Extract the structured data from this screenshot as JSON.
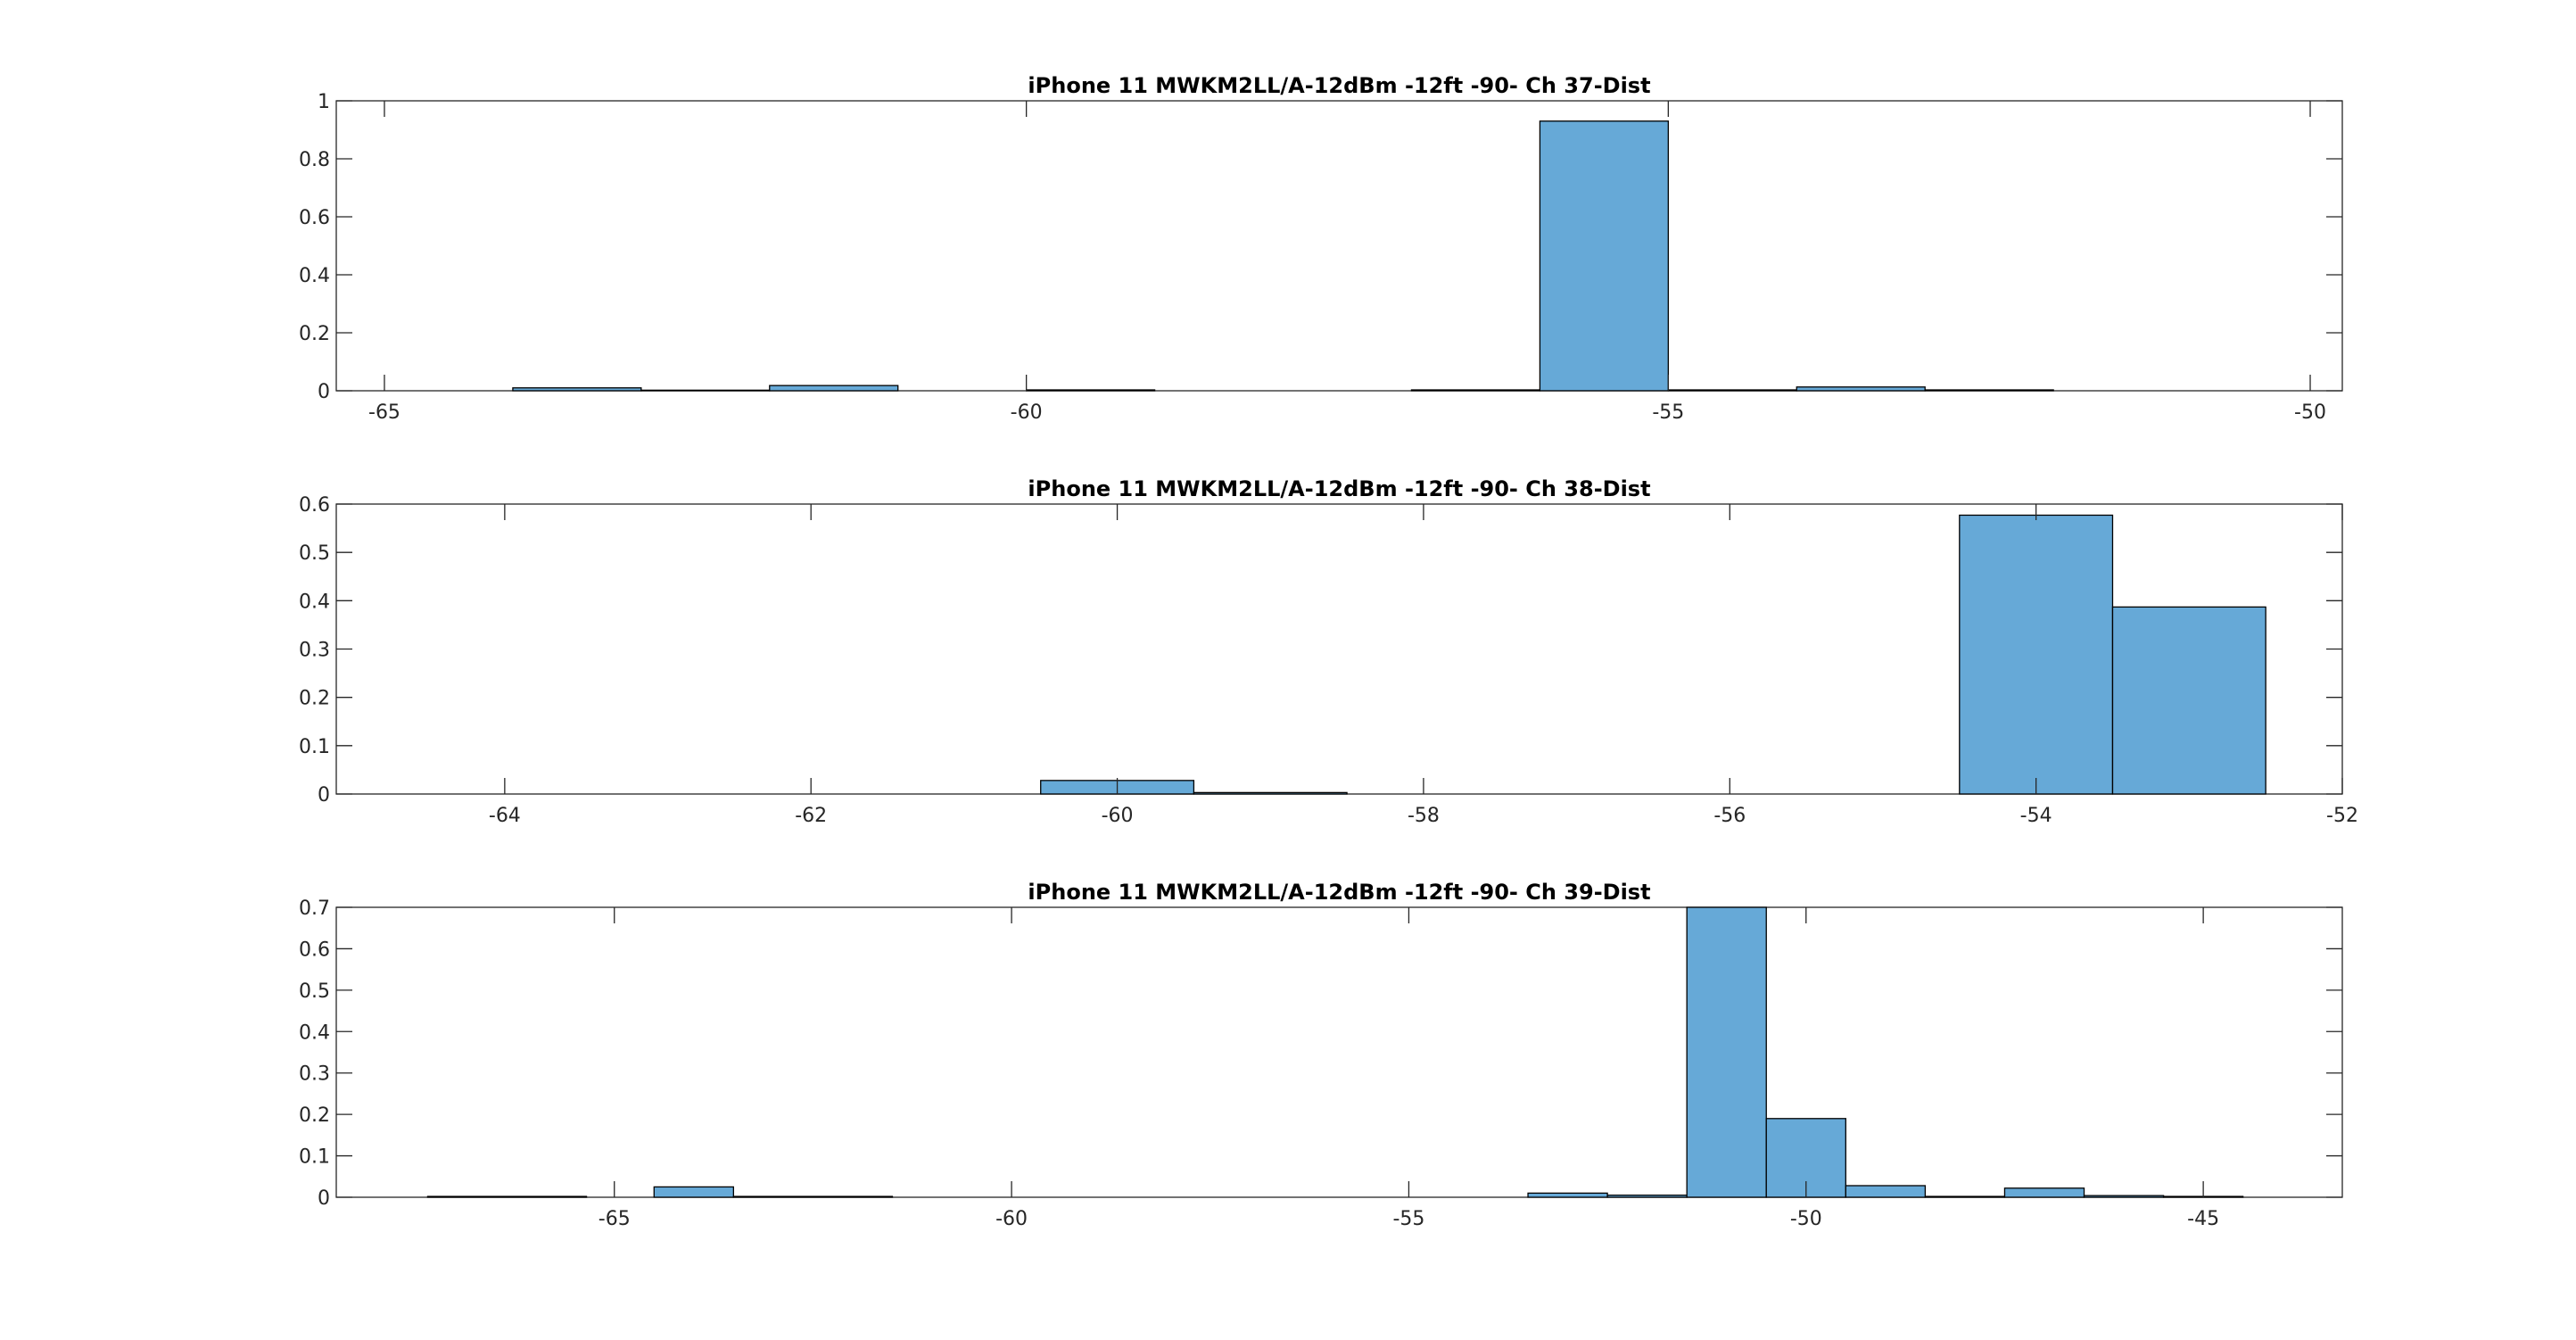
{
  "chart_data": [
    {
      "type": "bar",
      "title": "iPhone 11 MWKM2LL/A-12dBm -12ft -90- Ch 37-Dist",
      "xlabel": "",
      "ylabel": "",
      "xlim": [
        -65.375,
        -49.75
      ],
      "ylim": [
        0,
        1
      ],
      "grid": false,
      "bar_color": "#66a9d7",
      "xticks": [
        -65,
        -60,
        -55,
        -50
      ],
      "xtick_labels": [
        "-65",
        "-60",
        "-55",
        "-50"
      ],
      "yticks": [
        0,
        0.2,
        0.4,
        0.6,
        0.8,
        1
      ],
      "ytick_labels": [
        "0",
        "0.2",
        "0.4",
        "0.6",
        "0.8",
        "1"
      ],
      "bins": [
        {
          "x0": -64.0,
          "x1": -63.0,
          "value": 0.01
        },
        {
          "x0": -63.0,
          "x1": -62.0,
          "value": 0.002
        },
        {
          "x0": -62.0,
          "x1": -61.0,
          "value": 0.018
        },
        {
          "x0": -60.0,
          "x1": -59.0,
          "value": 0.003
        },
        {
          "x0": -57.0,
          "x1": -56.0,
          "value": 0.003
        },
        {
          "x0": -56.0,
          "x1": -55.0,
          "value": 0.93
        },
        {
          "x0": -55.0,
          "x1": -54.0,
          "value": 0.003
        },
        {
          "x0": -54.0,
          "x1": -53.0,
          "value": 0.013
        },
        {
          "x0": -53.0,
          "x1": -52.0,
          "value": 0.003
        }
      ]
    },
    {
      "type": "bar",
      "title": "iPhone 11 MWKM2LL/A-12dBm -12ft -90- Ch 38-Dist",
      "xlabel": "",
      "ylabel": "",
      "xlim": [
        -65.1,
        -52.0
      ],
      "ylim": [
        0,
        0.6
      ],
      "grid": false,
      "bar_color": "#66a9d7",
      "xticks": [
        -64,
        -62,
        -60,
        -58,
        -56,
        -54,
        -52
      ],
      "xtick_labels": [
        "-64",
        "-62",
        "-60",
        "-58",
        "-56",
        "-54",
        "-52"
      ],
      "yticks": [
        0,
        0.1,
        0.2,
        0.3,
        0.4,
        0.5,
        0.6
      ],
      "ytick_labels": [
        "0",
        "0.1",
        "0.2",
        "0.3",
        "0.4",
        "0.5",
        "0.6"
      ],
      "bins": [
        {
          "x0": -60.5,
          "x1": -59.5,
          "value": 0.028
        },
        {
          "x0": -59.5,
          "x1": -58.5,
          "value": 0.003
        },
        {
          "x0": -54.5,
          "x1": -53.5,
          "value": 0.577
        },
        {
          "x0": -53.5,
          "x1": -52.5,
          "value": 0.387
        }
      ]
    },
    {
      "type": "bar",
      "title": "iPhone 11 MWKM2LL/A-12dBm -12ft -90- Ch 39-Dist",
      "xlabel": "",
      "ylabel": "",
      "xlim": [
        -68.5,
        -43.25
      ],
      "ylim": [
        0,
        0.7
      ],
      "grid": false,
      "bar_color": "#66a9d7",
      "xticks": [
        -65,
        -60,
        -55,
        -50,
        -45
      ],
      "xtick_labels": [
        "-65",
        "-60",
        "-55",
        "-50",
        "-45"
      ],
      "yticks": [
        0,
        0.1,
        0.2,
        0.3,
        0.4,
        0.5,
        0.6,
        0.7
      ],
      "ytick_labels": [
        "0",
        "0.1",
        "0.2",
        "0.3",
        "0.4",
        "0.5",
        "0.6",
        "0.7"
      ],
      "bins": [
        {
          "x0": -67.35,
          "x1": -65.35,
          "value": 0.002
        },
        {
          "x0": -64.5,
          "x1": -63.5,
          "value": 0.025
        },
        {
          "x0": -63.5,
          "x1": -61.5,
          "value": 0.002
        },
        {
          "x0": -53.5,
          "x1": -52.5,
          "value": 0.01
        },
        {
          "x0": -52.5,
          "x1": -51.5,
          "value": 0.005
        },
        {
          "x0": -51.5,
          "x1": -50.5,
          "value": 0.7
        },
        {
          "x0": -50.5,
          "x1": -49.5,
          "value": 0.19
        },
        {
          "x0": -49.5,
          "x1": -48.5,
          "value": 0.028
        },
        {
          "x0": -48.5,
          "x1": -47.5,
          "value": 0.002
        },
        {
          "x0": -47.5,
          "x1": -46.5,
          "value": 0.022
        },
        {
          "x0": -46.5,
          "x1": -45.5,
          "value": 0.004
        },
        {
          "x0": -45.5,
          "x1": -44.5,
          "value": 0.002
        }
      ]
    }
  ]
}
